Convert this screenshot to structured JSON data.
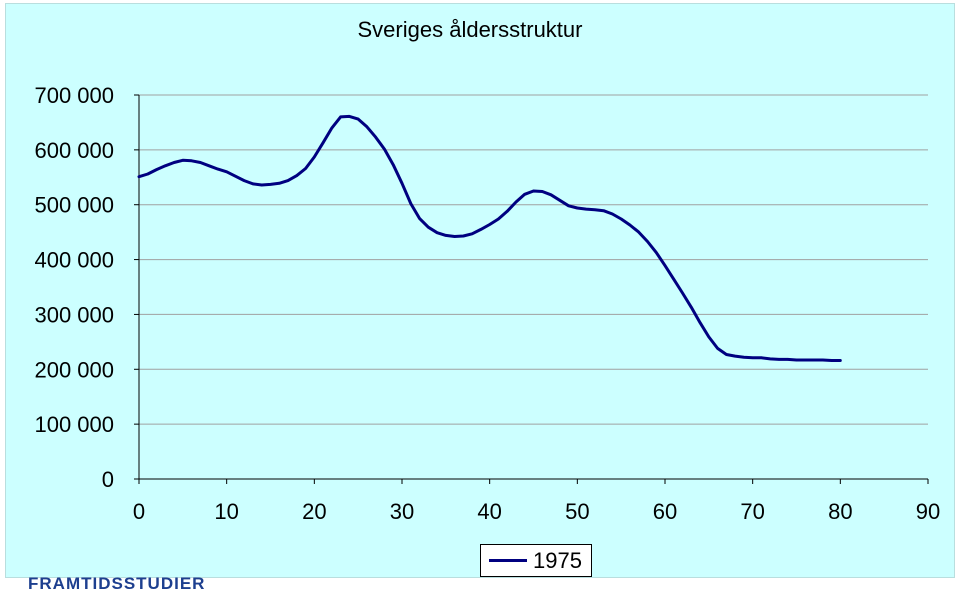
{
  "brand": "FRAMTIDSSTUDIER",
  "colors": {
    "background": "#ccffff",
    "line": "#000080",
    "grid": "#a0a0a0"
  },
  "chart_data": {
    "type": "line",
    "title": "Sveriges åldersstruktur",
    "xlabel": "",
    "ylabel": "",
    "xlim": [
      0,
      90
    ],
    "ylim": [
      0,
      700000
    ],
    "x_ticks": [
      0,
      10,
      20,
      30,
      40,
      50,
      60,
      70,
      80,
      90
    ],
    "y_ticks": [
      0,
      100000,
      200000,
      300000,
      400000,
      500000,
      600000,
      700000
    ],
    "y_tick_labels": [
      "0",
      "100 000",
      "200 000",
      "300 000",
      "400 000",
      "500 000",
      "600 000",
      "700 000"
    ],
    "grid": "horizontal",
    "legend_position": "bottom-center",
    "series": [
      {
        "name": "1975",
        "color": "#000080",
        "x": [
          0,
          1,
          2,
          3,
          4,
          5,
          6,
          7,
          8,
          9,
          10,
          11,
          12,
          13,
          14,
          15,
          16,
          17,
          18,
          19,
          20,
          21,
          22,
          23,
          24,
          25,
          26,
          27,
          28,
          29,
          30,
          31,
          32,
          33,
          34,
          35,
          36,
          37,
          38,
          39,
          40,
          41,
          42,
          43,
          44,
          45,
          46,
          47,
          48,
          49,
          50,
          51,
          52,
          53,
          54,
          55,
          56,
          57,
          58,
          59,
          60,
          61,
          62,
          63,
          64,
          65,
          66,
          67,
          68,
          69,
          70,
          71,
          72,
          73,
          74,
          75,
          76,
          77,
          78,
          79,
          80
        ],
        "values": [
          551000,
          556000,
          564000,
          571000,
          577000,
          581000,
          580000,
          577000,
          571000,
          565000,
          560000,
          552000,
          544000,
          538000,
          536000,
          537000,
          539000,
          544000,
          553000,
          566000,
          587000,
          613000,
          640000,
          660000,
          661000,
          656000,
          642000,
          623000,
          601000,
          573000,
          539000,
          502000,
          475000,
          459000,
          449000,
          444000,
          442000,
          443000,
          447000,
          455000,
          464000,
          474000,
          488000,
          505000,
          519000,
          525000,
          524000,
          518000,
          508000,
          498000,
          494000,
          492000,
          491000,
          489000,
          483000,
          474000,
          463000,
          450000,
          433000,
          413000,
          389000,
          364000,
          339000,
          313000,
          285000,
          259000,
          238000,
          227000,
          224000,
          222000,
          221000,
          221000,
          219000,
          218000,
          218000,
          217000,
          217000,
          217000,
          217000,
          216000,
          216000
        ]
      }
    ]
  }
}
